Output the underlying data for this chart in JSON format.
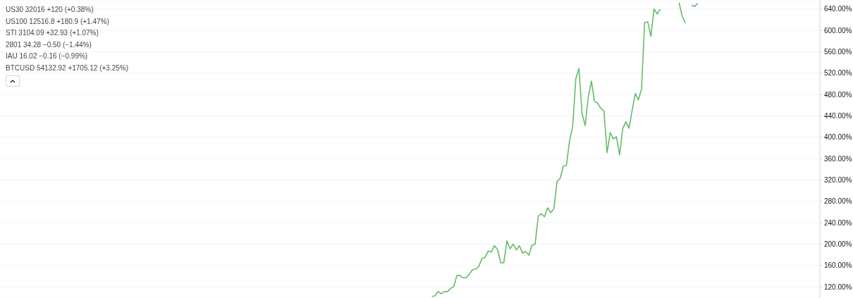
{
  "chart_data": {
    "type": "line",
    "categories": [
      null,
      null,
      null,
      null,
      null,
      null,
      null,
      null,
      null,
      null,
      null,
      null,
      null,
      null,
      null,
      null,
      null,
      null,
      null,
      null,
      null,
      null,
      null,
      null,
      null,
      null,
      null,
      null,
      null,
      null,
      null,
      null,
      null,
      null,
      null,
      null,
      null,
      null,
      null,
      null,
      null,
      null,
      null,
      null,
      null,
      null,
      null,
      null,
      null,
      null,
      null,
      null,
      null,
      null,
      null,
      null,
      null,
      null,
      null,
      null,
      null,
      null,
      null,
      null,
      null,
      null,
      null,
      null,
      null,
      null,
      null,
      null,
      null,
      null,
      null,
      null,
      null,
      null,
      null,
      null,
      null,
      null,
      null,
      null,
      null,
      null,
      null,
      null,
      null,
      null,
      null,
      null,
      null,
      null,
      null,
      null,
      null,
      null,
      null,
      null,
      null,
      null,
      null,
      null,
      null,
      null,
      null,
      null,
      null,
      null,
      null,
      null,
      null,
      null,
      null,
      null,
      null,
      null,
      null,
      null,
      null,
      null,
      null,
      null,
      null,
      null,
      null,
      null,
      null,
      null,
      null,
      null,
      null,
      null,
      null,
      null,
      null,
      null,
      null,
      null,
      null,
      null,
      null,
      null,
      null,
      null,
      null,
      null,
      null,
      null,
      null,
      null,
      null,
      null,
      null,
      null,
      null,
      null,
      null,
      null,
      null,
      null,
      null,
      null,
      null,
      null,
      null,
      null,
      null,
      null,
      null,
      null,
      null,
      null,
      null,
      null,
      null,
      null,
      null,
      null,
      null,
      null,
      null,
      null,
      null,
      null,
      null,
      null,
      null,
      null,
      null,
      null,
      null,
      null,
      null,
      null,
      null,
      null,
      null,
      null,
      null,
      null,
      null,
      null,
      null,
      null,
      null,
      null,
      null,
      null,
      null,
      null,
      null,
      null,
      null,
      null,
      null,
      null,
      null,
      null,
      null,
      null,
      null,
      null,
      null,
      null,
      null,
      null,
      null,
      null,
      null,
      null,
      null,
      null,
      null,
      null,
      null,
      null,
      null,
      null,
      null,
      null,
      null,
      null,
      null,
      null,
      null,
      null,
      null,
      null,
      null,
      null,
      null,
      null,
      null,
      null,
      null,
      null,
      null,
      null,
      null,
      null,
      null
    ],
    "series": [
      {
        "color": "#66bb6a",
        "values": [
          null,
          null,
          null,
          null,
          null,
          null,
          null,
          null,
          null,
          null,
          null,
          null,
          null,
          null,
          null,
          null,
          null,
          null,
          null,
          null,
          null,
          null,
          null,
          null,
          null,
          null,
          null,
          null,
          null,
          null,
          null,
          null,
          null,
          null,
          null,
          null,
          null,
          null,
          null,
          null,
          null,
          null,
          null,
          null,
          null,
          null,
          null,
          null,
          null,
          null,
          null,
          null,
          null,
          null,
          null,
          null,
          null,
          null,
          null,
          null,
          null,
          null,
          null,
          null,
          null,
          null,
          null,
          null,
          null,
          null,
          null,
          null,
          null,
          null,
          null,
          null,
          null,
          null,
          null,
          null,
          null,
          null,
          null,
          null,
          null,
          null,
          null,
          null,
          null,
          null,
          null,
          null,
          null,
          null,
          null,
          null,
          null,
          null,
          null,
          null,
          null,
          null,
          null,
          null,
          null,
          null,
          null,
          null,
          null,
          null,
          null,
          null,
          null,
          null,
          null,
          null,
          null,
          null,
          null,
          null,
          null,
          null,
          null,
          null,
          null,
          null,
          null,
          null,
          null,
          null,
          null,
          null,
          null,
          null,
          null,
          null,
          null,
          null,
          102,
          103,
          111,
          107,
          111,
          111,
          117,
          120,
          141,
          141,
          137,
          137,
          144,
          152,
          153,
          158,
          173,
          175,
          187,
          185,
          197,
          190,
          165,
          165,
          206,
          191,
          200,
          189,
          197,
          183,
          186,
          179,
          198,
          200,
          252,
          257,
          251,
          268,
          259,
          266,
          317,
          323,
          346,
          347,
          393,
          420,
          509,
          529,
          445,
          422,
          476,
          505,
          467,
          464,
          454,
          449,
          371,
          409,
          397,
          401,
          367,
          416,
          429,
          417,
          450,
          482,
          470,
          490,
          615,
          616,
          589,
          640,
          631,
          640,
          null,
          null,
          null,
          null,
          null,
          652,
          627,
          614,
          null,
          647,
          645,
          651,
          null,
          null,
          null,
          null,
          null,
          null,
          null,
          null,
          null,
          null,
          null,
          null,
          null,
          null,
          null,
          null,
          null,
          null,
          null,
          null,
          null,
          null,
          null,
          null,
          null,
          null,
          null,
          null,
          null,
          null,
          null,
          null,
          null,
          null,
          null,
          null,
          null,
          null,
          null
        ]
      }
    ],
    "ylim": [
      99,
      657
    ],
    "yticks": [
      {
        "value": 120,
        "label": "120.00%"
      },
      {
        "value": 160,
        "label": "160.00%"
      },
      {
        "value": 200,
        "label": "200.00%"
      },
      {
        "value": 240,
        "label": "240.00%"
      },
      {
        "value": 280,
        "label": "280.00%"
      },
      {
        "value": 320,
        "label": "320.00%"
      },
      {
        "value": 360,
        "label": "360.00%"
      },
      {
        "value": 400,
        "label": "400.00%"
      },
      {
        "value": 440,
        "label": "440.00%"
      },
      {
        "value": 480,
        "label": "480.00%"
      },
      {
        "value": 520,
        "label": "520.00%"
      },
      {
        "value": 560,
        "label": "560.00%"
      },
      {
        "value": 600,
        "label": "600.00%"
      },
      {
        "value": 640,
        "label": "640.00%"
      }
    ],
    "tick_labels": "y",
    "grid": "y",
    "annotations": [
      "US30 32016 +120 (+0.38%)",
      "US100 12516.8 +180.9 (+1.47%)",
      "STI 3104.09 +32.93 (+1.07%)",
      "2801 34.28 −0.50 (−1.44%)",
      "IAU 16.02 −0.16 (−0.99%)",
      "BTCUSD 54132.92 +1705.12 (+3.25%)"
    ]
  }
}
